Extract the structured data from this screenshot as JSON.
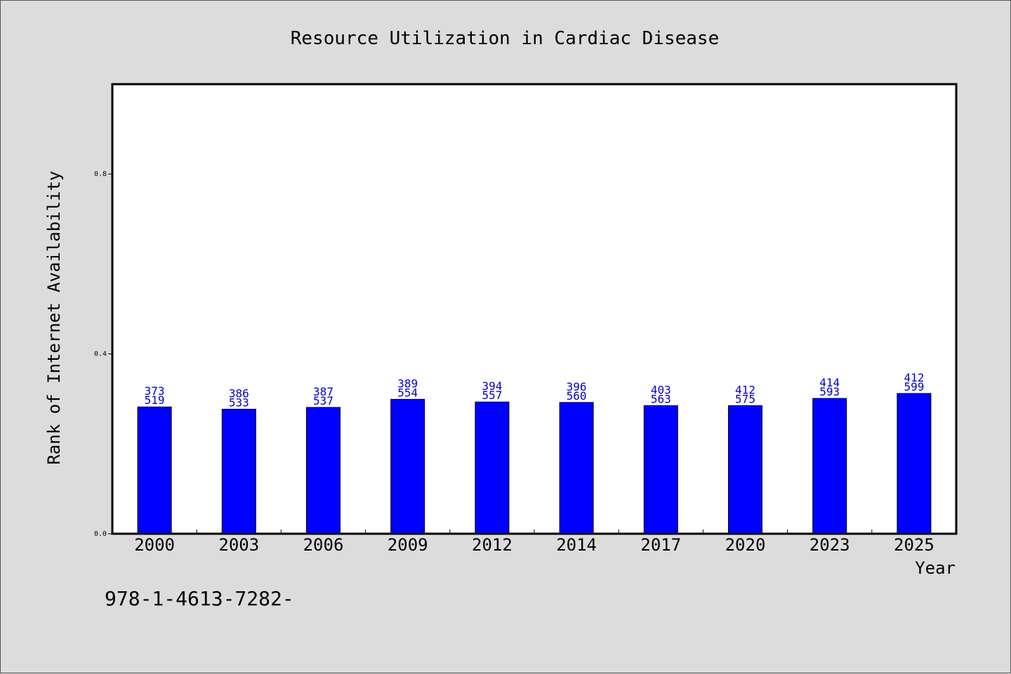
{
  "chart_data": {
    "type": "bar",
    "title": "Resource Utilization in Cardiac Disease",
    "xlabel": "Year",
    "ylabel": "Rank of Internet Availability",
    "categories": [
      "2000",
      "2003",
      "2006",
      "2009",
      "2012",
      "2014",
      "2017",
      "2020",
      "2023",
      "2025"
    ],
    "values": [
      0.282,
      0.277,
      0.281,
      0.299,
      0.293,
      0.292,
      0.285,
      0.285,
      0.301,
      0.312
    ],
    "bar_labels_top": [
      "373",
      "386",
      "387",
      "389",
      "394",
      "396",
      "403",
      "412",
      "414",
      "412"
    ],
    "bar_labels_bottom": [
      "519",
      "533",
      "537",
      "554",
      "557",
      "560",
      "563",
      "575",
      "593",
      "599"
    ],
    "ylim": [
      0,
      1.0
    ],
    "yticks": [
      0.0,
      0.4,
      0.8
    ],
    "ytick_labels": [
      "0.0",
      "0.4",
      "0.8"
    ],
    "bar_color": "#0000ff",
    "label_color": "#0000cc",
    "grid": false
  },
  "footer": {
    "text": "978-1-4613-7282-"
  }
}
